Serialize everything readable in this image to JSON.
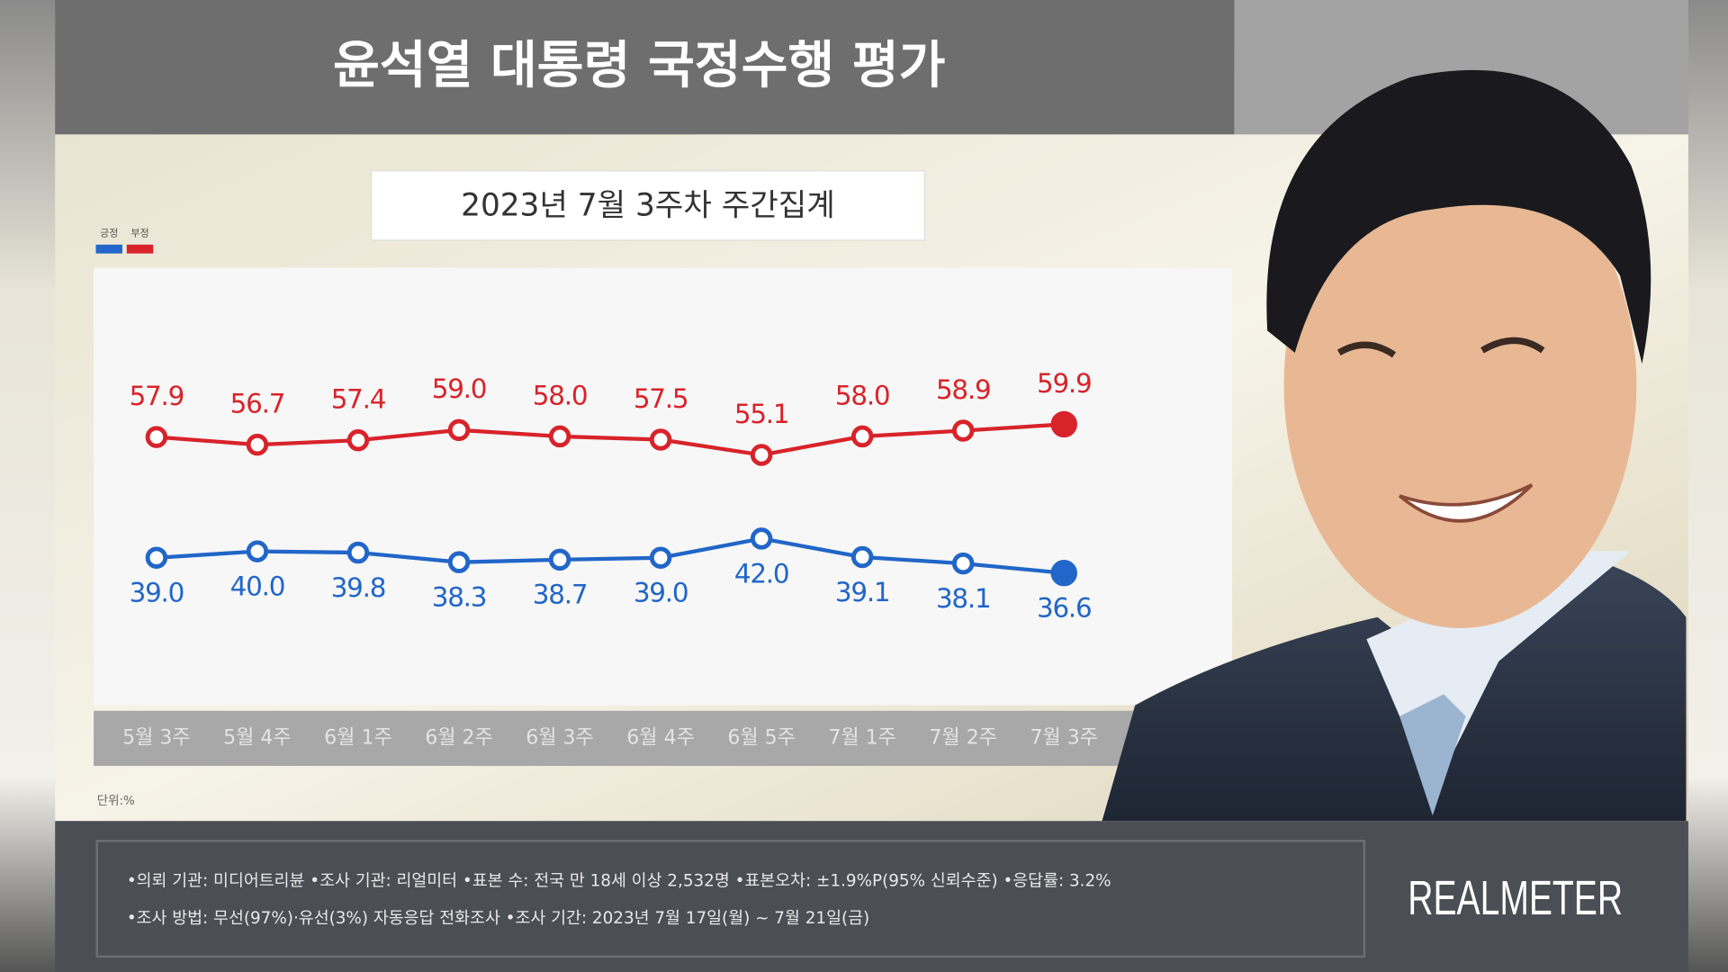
{
  "chart_data": {
    "type": "line",
    "title": "윤석열 대통령 국정수행 평가",
    "subtitle": "2023년 7월 3주차 주간집계",
    "categories": [
      "5월 3주",
      "5월 4주",
      "6월 1주",
      "6월 2주",
      "6월 3주",
      "6월 4주",
      "6월 5주",
      "7월 1주",
      "7월 2주",
      "7월 3주"
    ],
    "series": [
      {
        "name": "긍정",
        "color": "#2166c8",
        "values": [
          39.0,
          40.0,
          39.8,
          38.3,
          38.7,
          39.0,
          42.0,
          39.1,
          38.1,
          36.6
        ],
        "value_labels": [
          "39.0",
          "40.0",
          "39.8",
          "38.3",
          "38.7",
          "39.0",
          "42.0",
          "39.1",
          "38.1",
          "36.6"
        ]
      },
      {
        "name": "부정",
        "color": "#d8232a",
        "values": [
          57.9,
          56.7,
          57.4,
          59.0,
          58.0,
          57.5,
          55.1,
          58.0,
          58.9,
          59.9
        ],
        "value_labels": [
          "57.9",
          "56.7",
          "57.4",
          "59.0",
          "58.0",
          "57.5",
          "55.1",
          "58.0",
          "58.9",
          "59.9"
        ]
      }
    ],
    "unit_label": "단위:%",
    "footnotes": [
      "•의뢰 기관: 미디어트리뷴 •조사 기관: 리얼미터 •표본 수: 전국 만 18세 이상 2,532명 •표본오차: ±1.9%P(95% 신뢰수준) •응답률: 3.2%",
      "•조사 방법: 무선(97%)·유선(3%) 자동응답 전화조사 •조사 기간: 2023년 7월 17일(월) ~ 7월 21일(금)"
    ],
    "source": "REALMETER"
  }
}
